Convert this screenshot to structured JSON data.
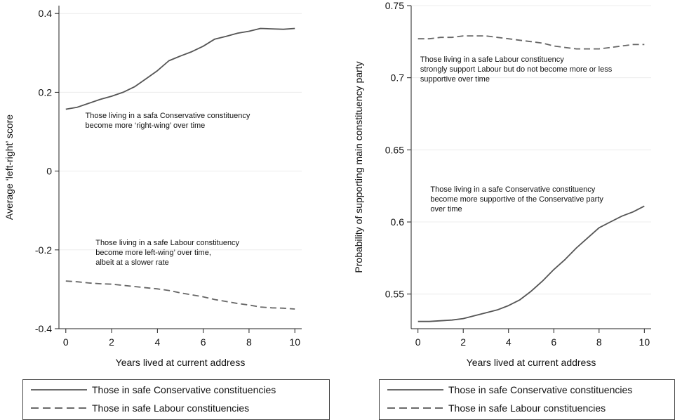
{
  "chart_data": [
    {
      "type": "line",
      "title": "",
      "xlabel": "Years lived at current address",
      "ylabel": "Average ‘left-right’ score",
      "xlim": [
        -0.3,
        10.3
      ],
      "ylim": [
        -0.4,
        0.42
      ],
      "xticks": [
        0,
        2,
        4,
        6,
        8,
        10
      ],
      "yticks": [
        -0.4,
        -0.2,
        0,
        0.2,
        0.4
      ],
      "ytick_labels": [
        "-0.4",
        "-0.2",
        "0",
        "0.2",
        "0.4"
      ],
      "grid": "horizontal",
      "series": [
        {
          "name": "Those in safe Conservative constituencies",
          "style": "solid",
          "x": [
            0,
            0.5,
            1,
            1.5,
            2,
            2.5,
            3,
            3.5,
            4,
            4.5,
            5,
            5.5,
            6,
            6.5,
            7,
            7.5,
            8,
            8.5,
            9,
            9.5,
            10
          ],
          "y": [
            0.157,
            0.162,
            0.172,
            0.182,
            0.19,
            0.2,
            0.214,
            0.234,
            0.255,
            0.28,
            0.292,
            0.303,
            0.317,
            0.335,
            0.342,
            0.35,
            0.355,
            0.362,
            0.361,
            0.36,
            0.362
          ]
        },
        {
          "name": "Those in safe Labour constituencies",
          "style": "dashed",
          "x": [
            0,
            0.5,
            1,
            1.5,
            2,
            2.5,
            3,
            3.5,
            4,
            4.5,
            5,
            5.5,
            6,
            6.5,
            7,
            7.5,
            8,
            8.5,
            9,
            9.5,
            10
          ],
          "y": [
            -0.279,
            -0.281,
            -0.284,
            -0.286,
            -0.287,
            -0.29,
            -0.293,
            -0.296,
            -0.299,
            -0.303,
            -0.309,
            -0.314,
            -0.319,
            -0.326,
            -0.331,
            -0.336,
            -0.34,
            -0.345,
            -0.347,
            -0.348,
            -0.35
          ]
        }
      ],
      "annotations": [
        {
          "lines": [
            "Those living in a safa Conservative constituency",
            "become more ‘right-wing’ over time"
          ],
          "x": 0.85,
          "y": 0.135
        },
        {
          "lines": [
            "Those living in a safe Labour constituency",
            "become more left-wing’ over time,",
            "albeit at a slower rate"
          ],
          "x": 1.3,
          "y": -0.188
        }
      ],
      "legend": {
        "position": "bottom",
        "entries": [
          {
            "label": "Those in safe Conservative constituencies",
            "style": "solid"
          },
          {
            "label": "Those in safe Labour constituencies",
            "style": "dashed"
          }
        ]
      }
    },
    {
      "type": "line",
      "title": "",
      "xlabel": "Years lived at current address",
      "ylabel": "Probability of supporting main constituency party",
      "xlim": [
        -0.3,
        10.3
      ],
      "ylim": [
        0.526,
        0.75
      ],
      "xticks": [
        0,
        2,
        4,
        6,
        8,
        10
      ],
      "yticks": [
        0.55,
        0.6,
        0.65,
        0.7,
        0.75
      ],
      "ytick_labels": [
        "0.55",
        "0.6",
        "0.65",
        "0.7",
        "0.75"
      ],
      "grid": "horizontal",
      "series": [
        {
          "name": "Those in safe Conservative constituencies",
          "style": "solid",
          "x": [
            0,
            0.5,
            1,
            1.5,
            2,
            2.5,
            3,
            3.5,
            4,
            4.5,
            5,
            5.5,
            6,
            6.5,
            7,
            7.5,
            8,
            8.5,
            9,
            9.5,
            10
          ],
          "y": [
            0.531,
            0.531,
            0.5315,
            0.532,
            0.533,
            0.535,
            0.537,
            0.539,
            0.542,
            0.546,
            0.552,
            0.559,
            0.567,
            0.574,
            0.582,
            0.589,
            0.596,
            0.6,
            0.604,
            0.607,
            0.611
          ]
        },
        {
          "name": "Those in safe Labour constituencies",
          "style": "dashed",
          "x": [
            0,
            0.5,
            1,
            1.5,
            2,
            2.5,
            3,
            3.5,
            4,
            4.5,
            5,
            5.5,
            6,
            6.5,
            7,
            7.5,
            8,
            8.5,
            9,
            9.5,
            10
          ],
          "y": [
            0.727,
            0.727,
            0.728,
            0.728,
            0.729,
            0.729,
            0.729,
            0.728,
            0.727,
            0.726,
            0.725,
            0.724,
            0.722,
            0.721,
            0.72,
            0.72,
            0.72,
            0.721,
            0.722,
            0.723,
            0.723
          ]
        }
      ],
      "annotations": [
        {
          "lines": [
            "Those living in a safe Labour constituency",
            "strongly support Labour but do not become more or less",
            "supportive over time"
          ],
          "x": 0.1,
          "y": 0.711
        },
        {
          "lines": [
            "Those living in a safe Conservative constituency",
            "become more supportive of the Conservative party",
            "over time"
          ],
          "x": 0.55,
          "y": 0.621
        }
      ],
      "legend": {
        "position": "bottom",
        "entries": [
          {
            "label": "Those in safe Conservative constituencies",
            "style": "solid"
          },
          {
            "label": "Those in safe Labour constituencies",
            "style": "dashed"
          }
        ]
      }
    }
  ]
}
